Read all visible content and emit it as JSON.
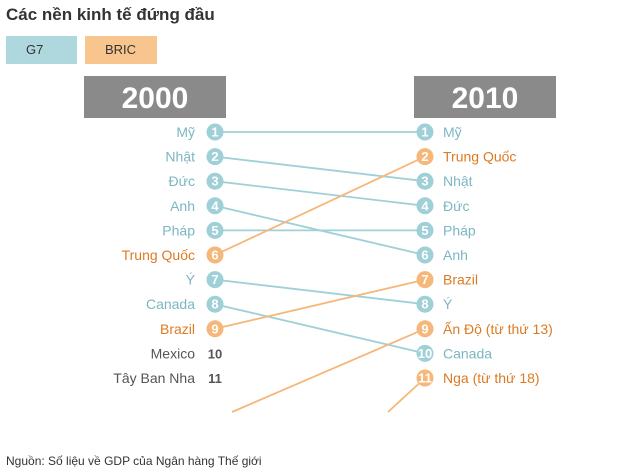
{
  "title": "Các nền kinh tế đứng đầu",
  "legend": [
    {
      "label": "G7",
      "color": "#afd8de"
    },
    {
      "label": "BRIC",
      "color": "#f9c58f"
    }
  ],
  "source": "Nguồn: Số liệu về GDP của Ngân hàng Thế giới",
  "chart_data": {
    "type": "slope",
    "years": [
      "2000",
      "2010"
    ],
    "colors": {
      "G7": "#9fd0d8",
      "BRIC": "#f6b77a",
      "G7_text": "#7bb7c2",
      "BRIC_text": "#dd7a22",
      "other_text": "#555555",
      "header_bg": "#8a8a8a"
    },
    "rankings_2000": [
      {
        "rank": 1,
        "name": "Mỹ",
        "group": "G7"
      },
      {
        "rank": 2,
        "name": "Nhật",
        "group": "G7"
      },
      {
        "rank": 3,
        "name": "Đức",
        "group": "G7"
      },
      {
        "rank": 4,
        "name": "Anh",
        "group": "G7"
      },
      {
        "rank": 5,
        "name": "Pháp",
        "group": "G7"
      },
      {
        "rank": 6,
        "name": "Trung Quốc",
        "group": "BRIC"
      },
      {
        "rank": 7,
        "name": "Ý",
        "group": "G7"
      },
      {
        "rank": 8,
        "name": "Canada",
        "group": "G7"
      },
      {
        "rank": 9,
        "name": "Brazil",
        "group": "BRIC"
      },
      {
        "rank": 10,
        "name": "Mexico",
        "group": "other"
      },
      {
        "rank": 11,
        "name": "Tây Ban Nha",
        "group": "other"
      }
    ],
    "rankings_2010": [
      {
        "rank": 1,
        "name": "Mỹ",
        "group": "G7"
      },
      {
        "rank": 2,
        "name": "Trung Quốc",
        "group": "BRIC"
      },
      {
        "rank": 3,
        "name": "Nhật",
        "group": "G7"
      },
      {
        "rank": 4,
        "name": "Đức",
        "group": "G7"
      },
      {
        "rank": 5,
        "name": "Pháp",
        "group": "G7"
      },
      {
        "rank": 6,
        "name": "Anh",
        "group": "G7"
      },
      {
        "rank": 7,
        "name": "Brazil",
        "group": "BRIC"
      },
      {
        "rank": 8,
        "name": "Ý",
        "group": "G7"
      },
      {
        "rank": 9,
        "name": "Ấn Độ (từ thứ 13)",
        "group": "BRIC"
      },
      {
        "rank": 10,
        "name": "Canada",
        "group": "G7"
      },
      {
        "rank": 11,
        "name": "Nga (từ thứ 18)",
        "group": "BRIC"
      }
    ],
    "links": [
      {
        "from": 1,
        "to": 1,
        "group": "G7"
      },
      {
        "from": 2,
        "to": 3,
        "group": "G7"
      },
      {
        "from": 3,
        "to": 4,
        "group": "G7"
      },
      {
        "from": 4,
        "to": 6,
        "group": "G7"
      },
      {
        "from": 5,
        "to": 5,
        "group": "G7"
      },
      {
        "from": 6,
        "to": 2,
        "group": "BRIC"
      },
      {
        "from": 7,
        "to": 8,
        "group": "G7"
      },
      {
        "from": 8,
        "to": 10,
        "group": "G7"
      },
      {
        "from": 9,
        "to": 7,
        "group": "BRIC"
      },
      {
        "from": "off-chart",
        "to": 9,
        "group": "BRIC"
      },
      {
        "from": "off-chart",
        "to": 11,
        "group": "BRIC"
      }
    ]
  }
}
